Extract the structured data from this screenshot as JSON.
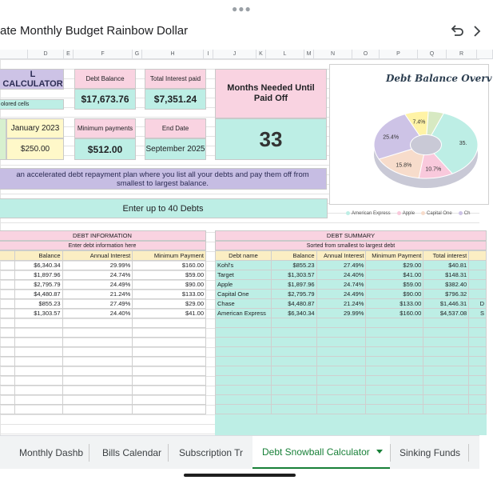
{
  "doc_title": "ate Monthly Budget Rainbow Dollar",
  "columns": [
    "",
    "D",
    "E",
    "F",
    "G",
    "H",
    "I",
    "J",
    "K",
    "L",
    "M",
    "N",
    "O",
    "P",
    "Q",
    "R",
    ""
  ],
  "kpi": {
    "calc_title": "L CALCULATOR",
    "colored_note": "olored cells",
    "start_date": "January 2023",
    "extra_payment": "$250.00",
    "debt_balance_label": "Debt Balance",
    "debt_balance_value": "$17,673.76",
    "total_interest_label": "Total Interest paid",
    "total_interest_value": "$7,351.24",
    "months_label": "Months Needed Until Paid Off",
    "months_value": "33",
    "min_payments_label": "Minimum payments",
    "min_payments_value": "$512.00",
    "end_date_label": "End Date",
    "end_date_value": "September 2025"
  },
  "description": "an accelerated debt repayment plan where you list all your debts and pay them off from smallest to largest balance.",
  "enter_debts": "Enter up to 40 Debts",
  "chart": {
    "title": "Debt Balance Overv",
    "legend": [
      "American Express",
      "Apple",
      "Capital One",
      "Ch"
    ]
  },
  "chart_data": {
    "type": "pie",
    "title": "Debt Balance Overv",
    "slices": [
      {
        "label": "American Express",
        "value": 35.9,
        "color": "#bdeee5",
        "shown": "35."
      },
      {
        "label": "Chase",
        "value": 25.4,
        "color": "#cdc3e6",
        "shown": "25.4%"
      },
      {
        "label": "Capital One",
        "value": 15.8,
        "color": "#f7dccb",
        "shown": "15.8%"
      },
      {
        "label": "Apple",
        "value": 10.7,
        "color": "#f9c9dc",
        "shown": "10.7%"
      },
      {
        "label": "Target",
        "value": 7.4,
        "color": "#fff3a6",
        "shown": "7.4%"
      },
      {
        "label": "Kohl's",
        "value": 4.8,
        "color": "#d7e9c2",
        "shown": ""
      }
    ]
  },
  "debt_info": {
    "title": "DEBT INFORMATION",
    "subtitle": "Enter debt information here",
    "headers": [
      "",
      "Balance",
      "Annual Interest",
      "Minimum Payment"
    ],
    "rows": [
      [
        "",
        "$6,340.34",
        "29.99%",
        "$160.00"
      ],
      [
        "",
        "$1,897.96",
        "24.74%",
        "$59.00"
      ],
      [
        "",
        "$2,795.79",
        "24.49%",
        "$90.00"
      ],
      [
        "",
        "$4,480.87",
        "21.24%",
        "$133.00"
      ],
      [
        "",
        "$855.23",
        "27.49%",
        "$29.00"
      ],
      [
        "",
        "$1,303.57",
        "24.40%",
        "$41.00"
      ]
    ]
  },
  "debt_summary": {
    "title": "DEBT SUMMARY",
    "subtitle": "Sorted from smallest to largest debt",
    "headers": [
      "Debt name",
      "Balance",
      "Annual Interest",
      "Minimum Payment",
      "Total interest",
      ""
    ],
    "rows": [
      [
        "Kohl's",
        "$855.23",
        "27.49%",
        "$29.00",
        "$40.81",
        ""
      ],
      [
        "Target",
        "$1,303.57",
        "24.40%",
        "$41.00",
        "$148.31",
        ""
      ],
      [
        "Apple",
        "$1,897.96",
        "24.74%",
        "$59.00",
        "$382.40",
        ""
      ],
      [
        "Capital One",
        "$2,795.79",
        "24.49%",
        "$90.00",
        "$796.32",
        ""
      ],
      [
        "Chase",
        "$4,480.87",
        "21.24%",
        "$133.00",
        "$1,446.31",
        "D"
      ],
      [
        "American Express",
        "$6,340.34",
        "29.99%",
        "$160.00",
        "$4,537.08",
        "S"
      ]
    ]
  },
  "tabs": [
    "Monthly Dashb",
    "Bills Calendar",
    "Subscription Tr",
    "Debt Snowball Calculator",
    "Sinking Funds"
  ]
}
